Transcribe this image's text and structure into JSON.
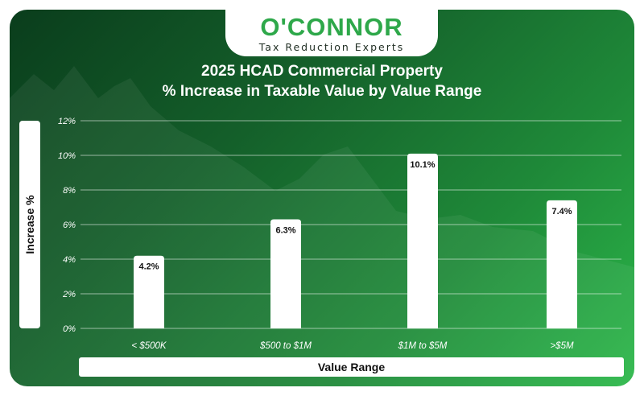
{
  "brand": {
    "name": "O'CONNOR",
    "tagline": "Tax Reduction Experts"
  },
  "colors": {
    "accent": "#2ea84a",
    "bar": "#ffffff",
    "background_dark": "#0a3d1c"
  },
  "chart_data": {
    "type": "bar",
    "title_line1": "2025 HCAD Commercial Property",
    "title_line2": "% Increase in Taxable Value by Value Range",
    "xlabel": "Value Range",
    "ylabel": "Increase %",
    "categories": [
      "< $500K",
      "$500 to $1M",
      "$1M to $5M",
      ">$5M"
    ],
    "values": [
      4.2,
      6.3,
      10.1,
      7.4
    ],
    "value_labels": [
      "4.2%",
      "6.3%",
      "10.1%",
      "7.4%"
    ],
    "ylim": [
      0,
      12
    ],
    "yticks": [
      "0%",
      "2%",
      "4%",
      "6%",
      "8%",
      "10%",
      "12%"
    ],
    "grid": true,
    "legend": "none"
  }
}
